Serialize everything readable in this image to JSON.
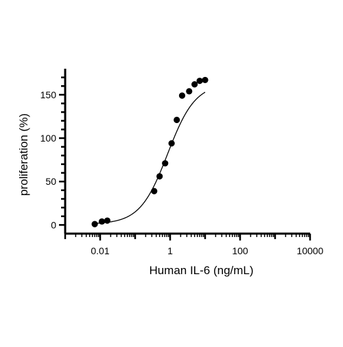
{
  "chart_data": {
    "type": "scatter",
    "title": "",
    "xlabel": "Human IL-6 (ng/mL)",
    "ylabel": "proliferation (%)",
    "x_scale": "log10",
    "xlim": [
      0.001,
      10000
    ],
    "ylim": [
      -10,
      180
    ],
    "x_ticks": [
      0.01,
      1,
      100,
      10000
    ],
    "x_tick_labels": [
      "0.01",
      "1",
      "100",
      "10000"
    ],
    "y_ticks": [
      0,
      50,
      100,
      150
    ],
    "y_tick_labels": [
      "0",
      "50",
      "100",
      "150"
    ],
    "grid": false,
    "legend": "none",
    "colors": {
      "points": "#000000",
      "curve": "#000000",
      "axes": "#000000"
    },
    "series": [
      {
        "type": "scatter",
        "x": [
          0.007,
          0.0112,
          0.016,
          0.35,
          0.5,
          0.72,
          1.1,
          1.55,
          2.2,
          3.5,
          5.0,
          7.0,
          10.0
        ],
        "y": [
          1,
          4,
          5,
          39,
          56,
          71,
          94,
          121,
          149,
          154,
          162,
          166,
          167
        ]
      },
      {
        "type": "line",
        "model": "four-parameter logistic fit",
        "bottom": 1,
        "top": 163,
        "ec50": 0.85,
        "hill_slope": 1.1,
        "x_range": [
          0.007,
          10.0
        ]
      }
    ]
  }
}
